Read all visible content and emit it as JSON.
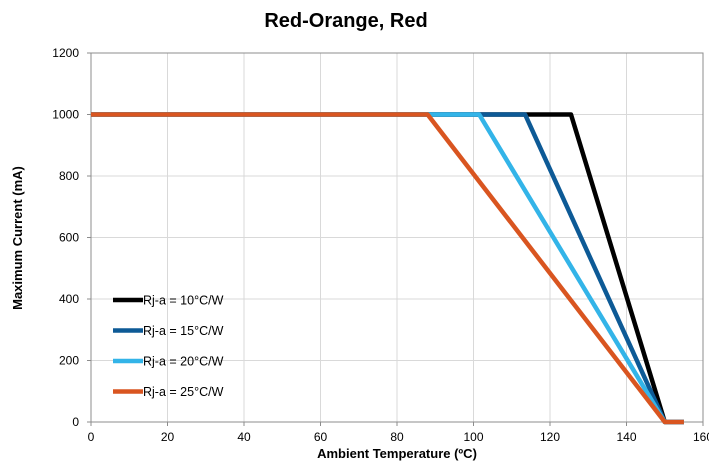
{
  "chart_data": {
    "type": "line",
    "title": "Red-Orange, Red",
    "xlabel": "Ambient Temperature (ºC)",
    "ylabel": "Maximum Current (mA)",
    "xlim": [
      0,
      160
    ],
    "ylim": [
      0,
      1200
    ],
    "xticks": [
      "0",
      "20",
      "40",
      "60",
      "80",
      "100",
      "120",
      "140",
      "160"
    ],
    "yticks": [
      "0",
      "200",
      "400",
      "600",
      "800",
      "1000",
      "1200"
    ],
    "grid": true,
    "legend_position": "lower-left",
    "series": [
      {
        "name": "Rj-a = 10°C/W",
        "color": "#000000",
        "x": [
          0,
          125.5,
          150,
          155
        ],
        "y": [
          1000,
          1000,
          0,
          0
        ]
      },
      {
        "name": "Rj-a = 15°C/W",
        "color": "#0d5a96",
        "x": [
          0,
          113.5,
          150,
          155
        ],
        "y": [
          1000,
          1000,
          0,
          0
        ]
      },
      {
        "name": "Rj-a = 20°C/W",
        "color": "#33b4e8",
        "x": [
          0,
          101.5,
          150,
          155
        ],
        "y": [
          1000,
          1000,
          0,
          0
        ]
      },
      {
        "name": "Rj-a = 25°C/W",
        "color": "#d95520",
        "x": [
          0,
          88,
          150,
          155
        ],
        "y": [
          1000,
          1000,
          0,
          0
        ]
      }
    ]
  }
}
